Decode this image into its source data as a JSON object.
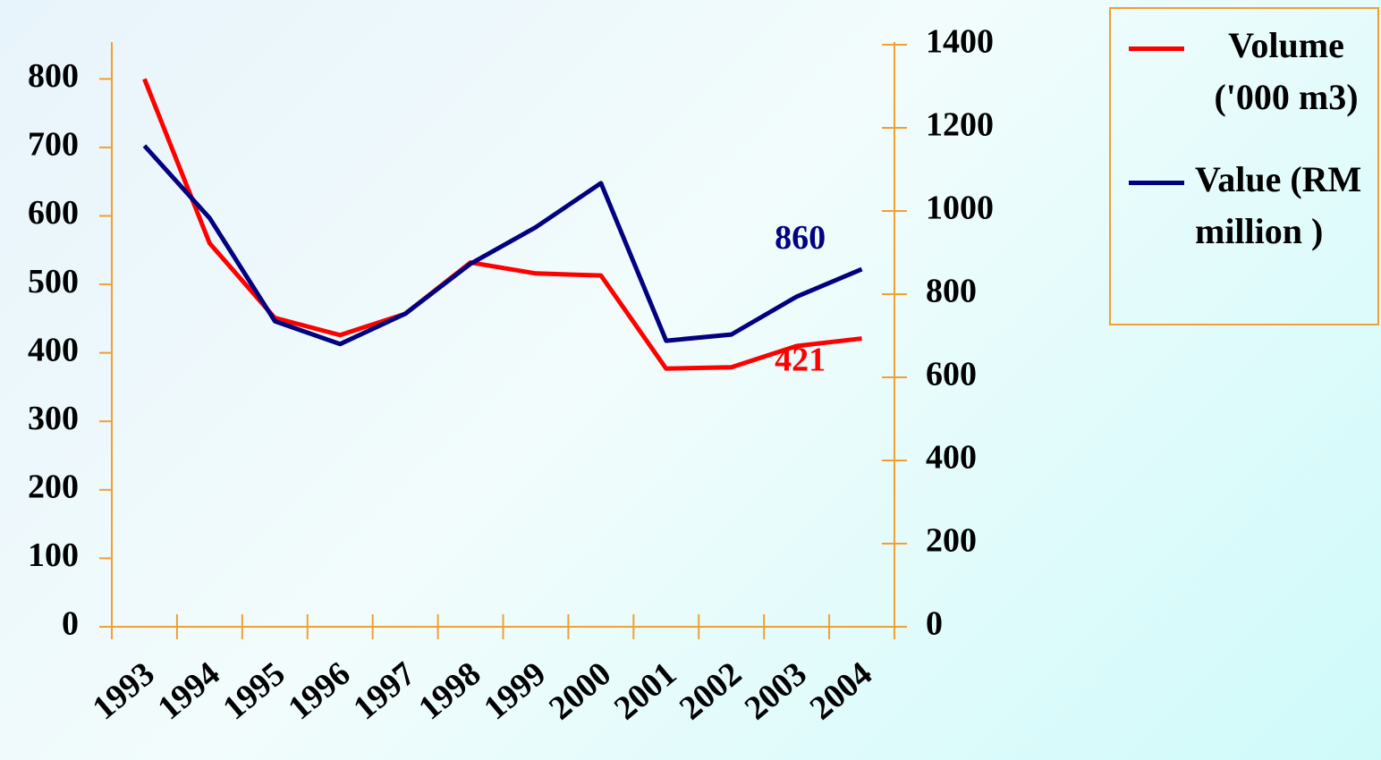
{
  "chart_data": {
    "type": "line",
    "categories": [
      "1993",
      "1994",
      "1995",
      "1996",
      "1997",
      "1998",
      "1999",
      "2000",
      "2001",
      "2002",
      "2003",
      "2004"
    ],
    "series": [
      {
        "name": "Volume ('000 m3)",
        "color": "#ff0000",
        "values": [
          800,
          560,
          451,
          426,
          457,
          532,
          516,
          513,
          377,
          379,
          410,
          421
        ]
      },
      {
        "name": "Value (RM million )",
        "color": "#000080",
        "axis": "y2",
        "values": [
          1157,
          983,
          735,
          680,
          753,
          873,
          961,
          1067,
          688,
          703,
          794,
          860
        ]
      }
    ],
    "ylim": [
      0,
      850
    ],
    "yticks": [
      0,
      100,
      200,
      300,
      400,
      500,
      600,
      700,
      800
    ],
    "y2lim": [
      0,
      1400
    ],
    "y2ticks": [
      0,
      200,
      400,
      600,
      800,
      1000,
      1200,
      1400
    ],
    "axis_color": "#f0a030",
    "legend": "right"
  }
}
